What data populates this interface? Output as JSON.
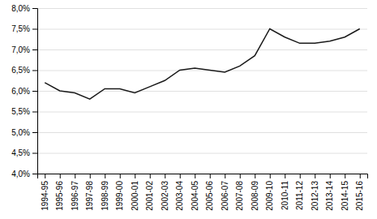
{
  "chart_data": {
    "type": "line",
    "categories": [
      "1994-95",
      "1995-96",
      "1996-97",
      "1997-98",
      "1998-99",
      "1999-00",
      "2000-01",
      "2001-02",
      "2002-03",
      "2003-04",
      "2004-05",
      "2005-06",
      "2006-07",
      "2007-08",
      "2008-09",
      "2009-10",
      "2010-11",
      "2011-12",
      "2012-13",
      "2013-14",
      "2014-15",
      "2015-16"
    ],
    "values": [
      6.2,
      6.0,
      5.95,
      5.8,
      6.05,
      6.05,
      5.95,
      6.1,
      6.25,
      6.5,
      6.55,
      6.5,
      6.45,
      6.6,
      6.85,
      7.5,
      7.3,
      7.15,
      7.15,
      7.2,
      7.3,
      7.5
    ],
    "color": "#1a1a1a",
    "ylim": [
      4.0,
      8.0
    ],
    "yticks": [
      {
        "value": 4.0,
        "label": "4,0%"
      },
      {
        "value": 4.5,
        "label": "4,5%"
      },
      {
        "value": 5.0,
        "label": "5,0%"
      },
      {
        "value": 5.5,
        "label": "5,5%"
      },
      {
        "value": 6.0,
        "label": "6,0%"
      },
      {
        "value": 6.5,
        "label": "6,5%"
      },
      {
        "value": 7.0,
        "label": "7,0%"
      },
      {
        "value": 7.5,
        "label": "7,5%"
      },
      {
        "value": 8.0,
        "label": "8,0%"
      }
    ],
    "grid": true
  }
}
